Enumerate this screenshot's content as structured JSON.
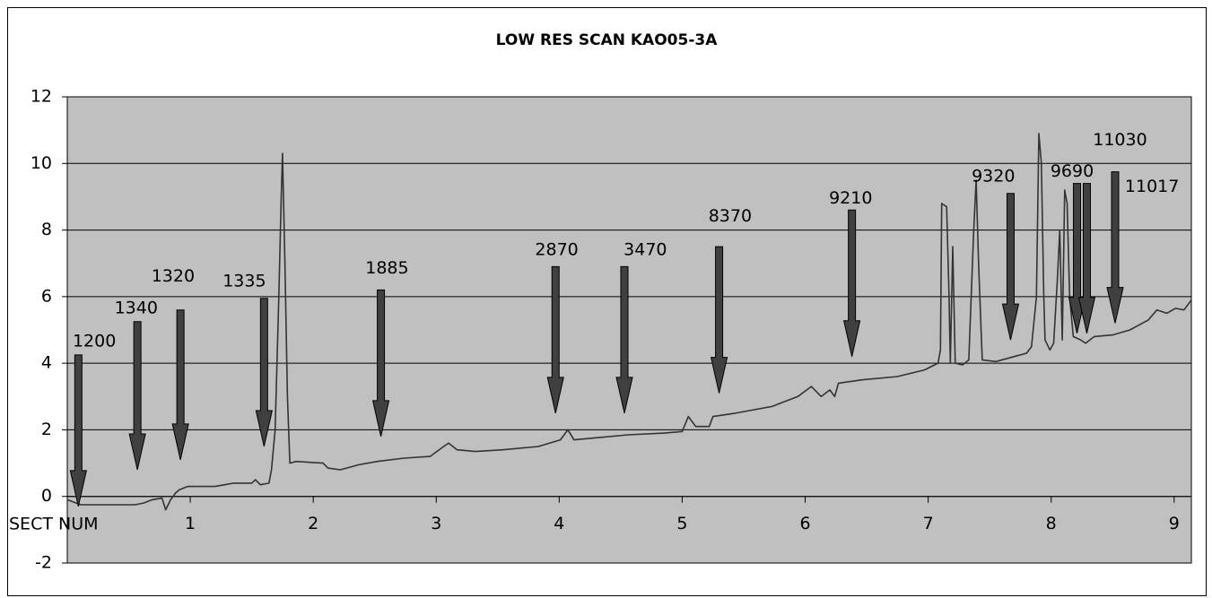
{
  "chart_data": {
    "type": "line",
    "title": "LOW RES SCAN KAO05-3A",
    "x_label": "SECT NUM",
    "xlim": [
      0,
      9.14
    ],
    "xticks": [
      1,
      2,
      3,
      4,
      5,
      6,
      7,
      8,
      9
    ],
    "ylim": [
      -2,
      12
    ],
    "yticks": [
      -2,
      0,
      2,
      4,
      6,
      8,
      10,
      12
    ],
    "grid": true,
    "series": [
      {
        "color": "#333333",
        "x": [
          0,
          0.11,
          0.55,
          0.62,
          0.69,
          0.77,
          0.8,
          0.84,
          0.88,
          0.91,
          0.98,
          1.2,
          1.28,
          1.35,
          1.5,
          1.53,
          1.57,
          1.64,
          1.66,
          1.69,
          1.72,
          1.74,
          1.75,
          1.77,
          1.79,
          1.81,
          1.86,
          2.08,
          2.12,
          2.22,
          2.37,
          2.52,
          2.74,
          2.95,
          3.06,
          3.1,
          3.17,
          3.32,
          3.54,
          3.83,
          4.01,
          4.07,
          4.12,
          4.27,
          4.56,
          4.85,
          5.0,
          5.05,
          5.11,
          5.22,
          5.25,
          5.43,
          5.73,
          5.94,
          6.05,
          6.13,
          6.2,
          6.24,
          6.27,
          6.46,
          6.75,
          6.97,
          7.08,
          7.1,
          7.11,
          7.15,
          7.17,
          7.18,
          7.2,
          7.22,
          7.28,
          7.33,
          7.37,
          7.39,
          7.41,
          7.44,
          7.55,
          7.7,
          7.8,
          7.84,
          7.88,
          7.9,
          7.92,
          7.94,
          7.95,
          7.99,
          8.02,
          8.05,
          8.07,
          8.09,
          8.11,
          8.13,
          8.15,
          8.18,
          8.24,
          8.28,
          8.35,
          8.5,
          8.64,
          8.79,
          8.86,
          8.94,
          9.01,
          9.08,
          9.14
        ],
        "values": [
          -0.1,
          -0.25,
          -0.25,
          -0.2,
          -0.1,
          -0.05,
          -0.4,
          -0.1,
          0.1,
          0.2,
          0.3,
          0.3,
          0.35,
          0.4,
          0.4,
          0.5,
          0.35,
          0.4,
          0.8,
          2,
          6,
          9,
          10.3,
          7,
          3,
          1,
          1.05,
          1.0,
          0.85,
          0.8,
          0.95,
          1.05,
          1.15,
          1.2,
          1.5,
          1.6,
          1.4,
          1.35,
          1.4,
          1.5,
          1.7,
          2.0,
          1.7,
          1.75,
          1.85,
          1.9,
          1.95,
          2.4,
          2.1,
          2.1,
          2.4,
          2.5,
          2.7,
          3.0,
          3.3,
          3.0,
          3.2,
          3.0,
          3.4,
          3.5,
          3.6,
          3.8,
          4.0,
          4.4,
          8.8,
          8.7,
          6,
          4,
          7.5,
          4.0,
          3.95,
          4.1,
          8,
          9.5,
          7,
          4.1,
          4.05,
          4.2,
          4.3,
          4.5,
          6,
          10.9,
          10,
          6,
          4.7,
          4.4,
          4.6,
          6.5,
          8,
          4.7,
          9.2,
          8.8,
          6,
          4.8,
          4.7,
          4.6,
          4.8,
          4.85,
          5.0,
          5.3,
          5.6,
          5.5,
          5.65,
          5.6,
          5.9
        ]
      }
    ],
    "annotations": [
      {
        "label": "1200",
        "x": 0.22,
        "y": 4.65,
        "arrow_x": 0.09,
        "arrow_top": 4.25,
        "arrow_tip": -0.3
      },
      {
        "label": "1340",
        "x": 0.56,
        "y": 5.65,
        "arrow_x": 0.57,
        "arrow_top": 5.25,
        "arrow_tip": 0.8
      },
      {
        "label": "1320",
        "x": 0.86,
        "y": 6.6,
        "arrow_x": 0.92,
        "arrow_top": 5.6,
        "arrow_tip": 1.1
      },
      {
        "label": "1335",
        "x": 1.44,
        "y": 6.45,
        "arrow_x": 1.6,
        "arrow_top": 5.95,
        "arrow_tip": 1.5
      },
      {
        "label": "1885",
        "x": 2.6,
        "y": 6.85,
        "arrow_x": 2.55,
        "arrow_top": 6.2,
        "arrow_tip": 1.8
      },
      {
        "label": "2870",
        "x": 3.98,
        "y": 7.4,
        "arrow_x": 3.97,
        "arrow_top": 6.9,
        "arrow_tip": 2.5
      },
      {
        "label": "3470",
        "x": 4.7,
        "y": 7.4,
        "arrow_x": 4.53,
        "arrow_top": 6.9,
        "arrow_tip": 2.5
      },
      {
        "label": "8370",
        "x": 5.39,
        "y": 8.4,
        "arrow_x": 5.3,
        "arrow_top": 7.5,
        "arrow_tip": 3.1
      },
      {
        "label": "9210",
        "x": 6.37,
        "y": 8.95,
        "arrow_x": 6.38,
        "arrow_top": 8.6,
        "arrow_tip": 4.2
      },
      {
        "label": "9320",
        "x": 7.53,
        "y": 9.6,
        "arrow_x": 7.67,
        "arrow_top": 9.1,
        "arrow_tip": 4.7
      },
      {
        "label": "9690",
        "x": 8.17,
        "y": 9.75,
        "arrow_x": 8.21,
        "arrow_top": 9.4,
        "arrow_tip": 4.9
      },
      {
        "label": "11030",
        "x": 8.56,
        "y": 10.7,
        "arrow_x": 8.52,
        "arrow_top": 9.75,
        "arrow_tip": 5.2
      },
      {
        "label": "11017",
        "x": 8.82,
        "y": 9.3,
        "arrow_x": 8.29,
        "arrow_top": 9.4,
        "arrow_tip": 4.9
      }
    ]
  }
}
